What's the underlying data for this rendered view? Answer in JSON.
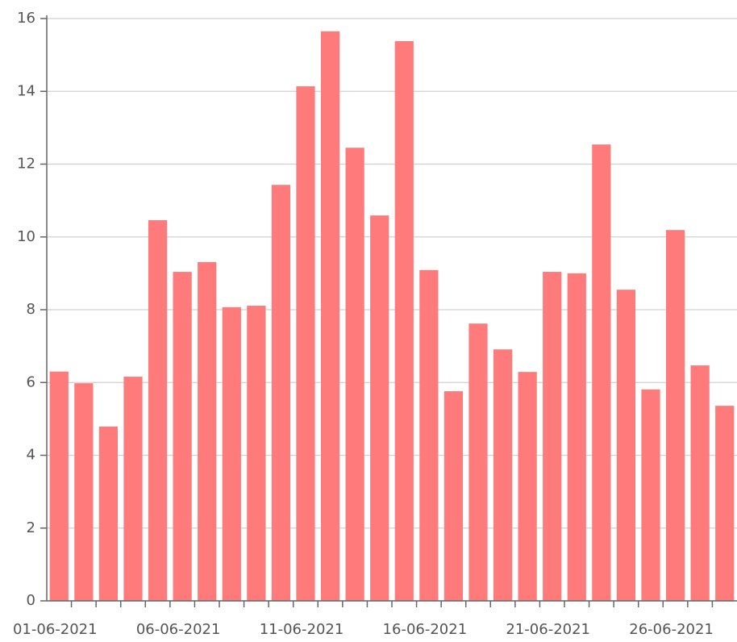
{
  "chart_data": {
    "type": "bar",
    "categories": [
      "01-06-2021",
      null,
      null,
      null,
      null,
      "06-06-2021",
      null,
      null,
      null,
      null,
      "11-06-2021",
      null,
      null,
      null,
      null,
      "16-06-2021",
      null,
      null,
      null,
      null,
      "21-06-2021",
      null,
      null,
      null,
      null,
      "26-06-2021",
      null,
      null
    ],
    "values": [
      6.3,
      5.98,
      4.79,
      6.16,
      10.46,
      9.04,
      9.31,
      8.07,
      8.11,
      11.43,
      14.14,
      15.65,
      12.45,
      10.59,
      15.38,
      9.09,
      5.76,
      7.62,
      6.91,
      6.29,
      9.04,
      9.0,
      12.54,
      8.55,
      5.81,
      10.19,
      6.47,
      5.36
    ],
    "color": "#ff7b7b",
    "ylim": [
      0,
      16
    ],
    "yticks": [
      0,
      2,
      4,
      6,
      8,
      10,
      12,
      14,
      16
    ],
    "grid": true
  }
}
